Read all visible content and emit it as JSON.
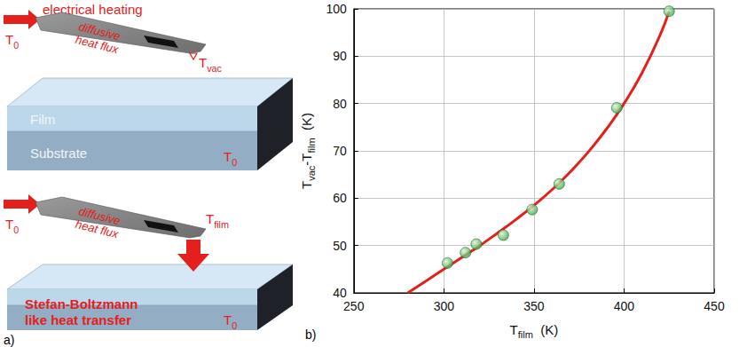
{
  "diagram": {
    "label": "a)",
    "heating": "electrical heating",
    "flux": "diffusive heat flux",
    "base_temperature": [
      {
        "text": "T"
      },
      {
        "text": "0",
        "sub": true
      }
    ],
    "tip_vacuum": [
      {
        "text": "T"
      },
      {
        "text": "vac",
        "sub": true
      }
    ],
    "tip_film": [
      {
        "text": "T"
      },
      {
        "text": "film",
        "sub": true
      }
    ],
    "layers": [
      "Film",
      "Substrate"
    ],
    "transfer": "Stefan-Boltzmann like heat transfer"
  },
  "chart_data": {
    "type": "scatter",
    "annotations": [
      "b)"
    ],
    "x_label": [
      {
        "text": "T"
      },
      {
        "text": "film",
        "sub": true
      },
      {
        "text": "  (K)"
      }
    ],
    "y_label": [
      {
        "text": "T"
      },
      {
        "text": "vac",
        "sub": true
      },
      {
        "text": "-T"
      },
      {
        "text": "film",
        "sub": true
      },
      {
        "text": "  (K)"
      }
    ],
    "xlim": [
      250,
      450
    ],
    "xticks": [
      250,
      300,
      350,
      400,
      450
    ],
    "ylim": [
      40,
      100
    ],
    "yticks": [
      40,
      50,
      60,
      70,
      80,
      90,
      100
    ],
    "grid": true,
    "series": [
      {
        "type": "line",
        "color": "#e3201c",
        "marker": "none",
        "line_style": "solid",
        "x": [
          280,
          290,
          300,
          310,
          320,
          330,
          340,
          350,
          360,
          370,
          380,
          390,
          400,
          410,
          420,
          425
        ],
        "values": [
          40,
          42.5,
          45,
          47.5,
          50,
          52.7,
          55.5,
          58.5,
          61.8,
          65.5,
          69.7,
          74.5,
          80,
          86.5,
          94.5,
          99.5
        ]
      },
      {
        "type": "scatter",
        "color": "#3aa648",
        "marker": "circle",
        "x": [
          302,
          312,
          318,
          333,
          349,
          364,
          396,
          425
        ],
        "values": [
          46.3,
          48.5,
          50.3,
          52.2,
          57.6,
          63,
          79.1,
          99.5
        ]
      }
    ]
  }
}
